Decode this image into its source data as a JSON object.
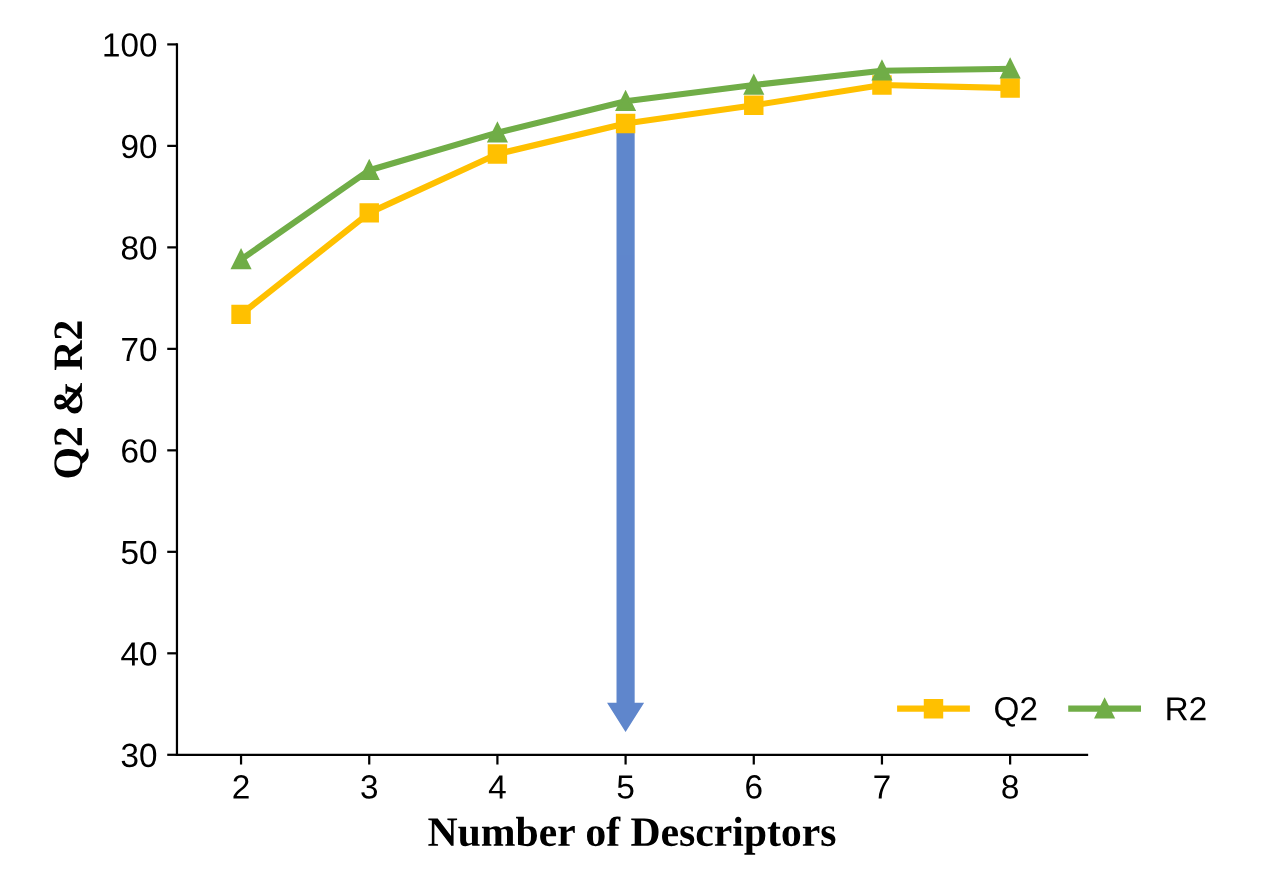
{
  "chart_data": {
    "type": "line",
    "xlabel": "Number of Descriptors",
    "ylabel": "Q2 & R2",
    "categories": [
      "2",
      "3",
      "4",
      "5",
      "6",
      "7",
      "8"
    ],
    "series": [
      {
        "name": "Q2",
        "color": "#ffc000",
        "marker": "square",
        "values": [
          73.4,
          83.4,
          89.2,
          92.2,
          94.0,
          96.0,
          95.7
        ]
      },
      {
        "name": "R2",
        "color": "#70ad47",
        "marker": "triangle",
        "values": [
          78.8,
          87.6,
          91.3,
          94.4,
          96.0,
          97.4,
          97.6
        ]
      }
    ],
    "ylim": [
      30,
      100
    ],
    "yticks": [
      30,
      40,
      50,
      60,
      70,
      80,
      90,
      100
    ],
    "grid": false,
    "legend": "bottom right",
    "line_style": "solid"
  }
}
